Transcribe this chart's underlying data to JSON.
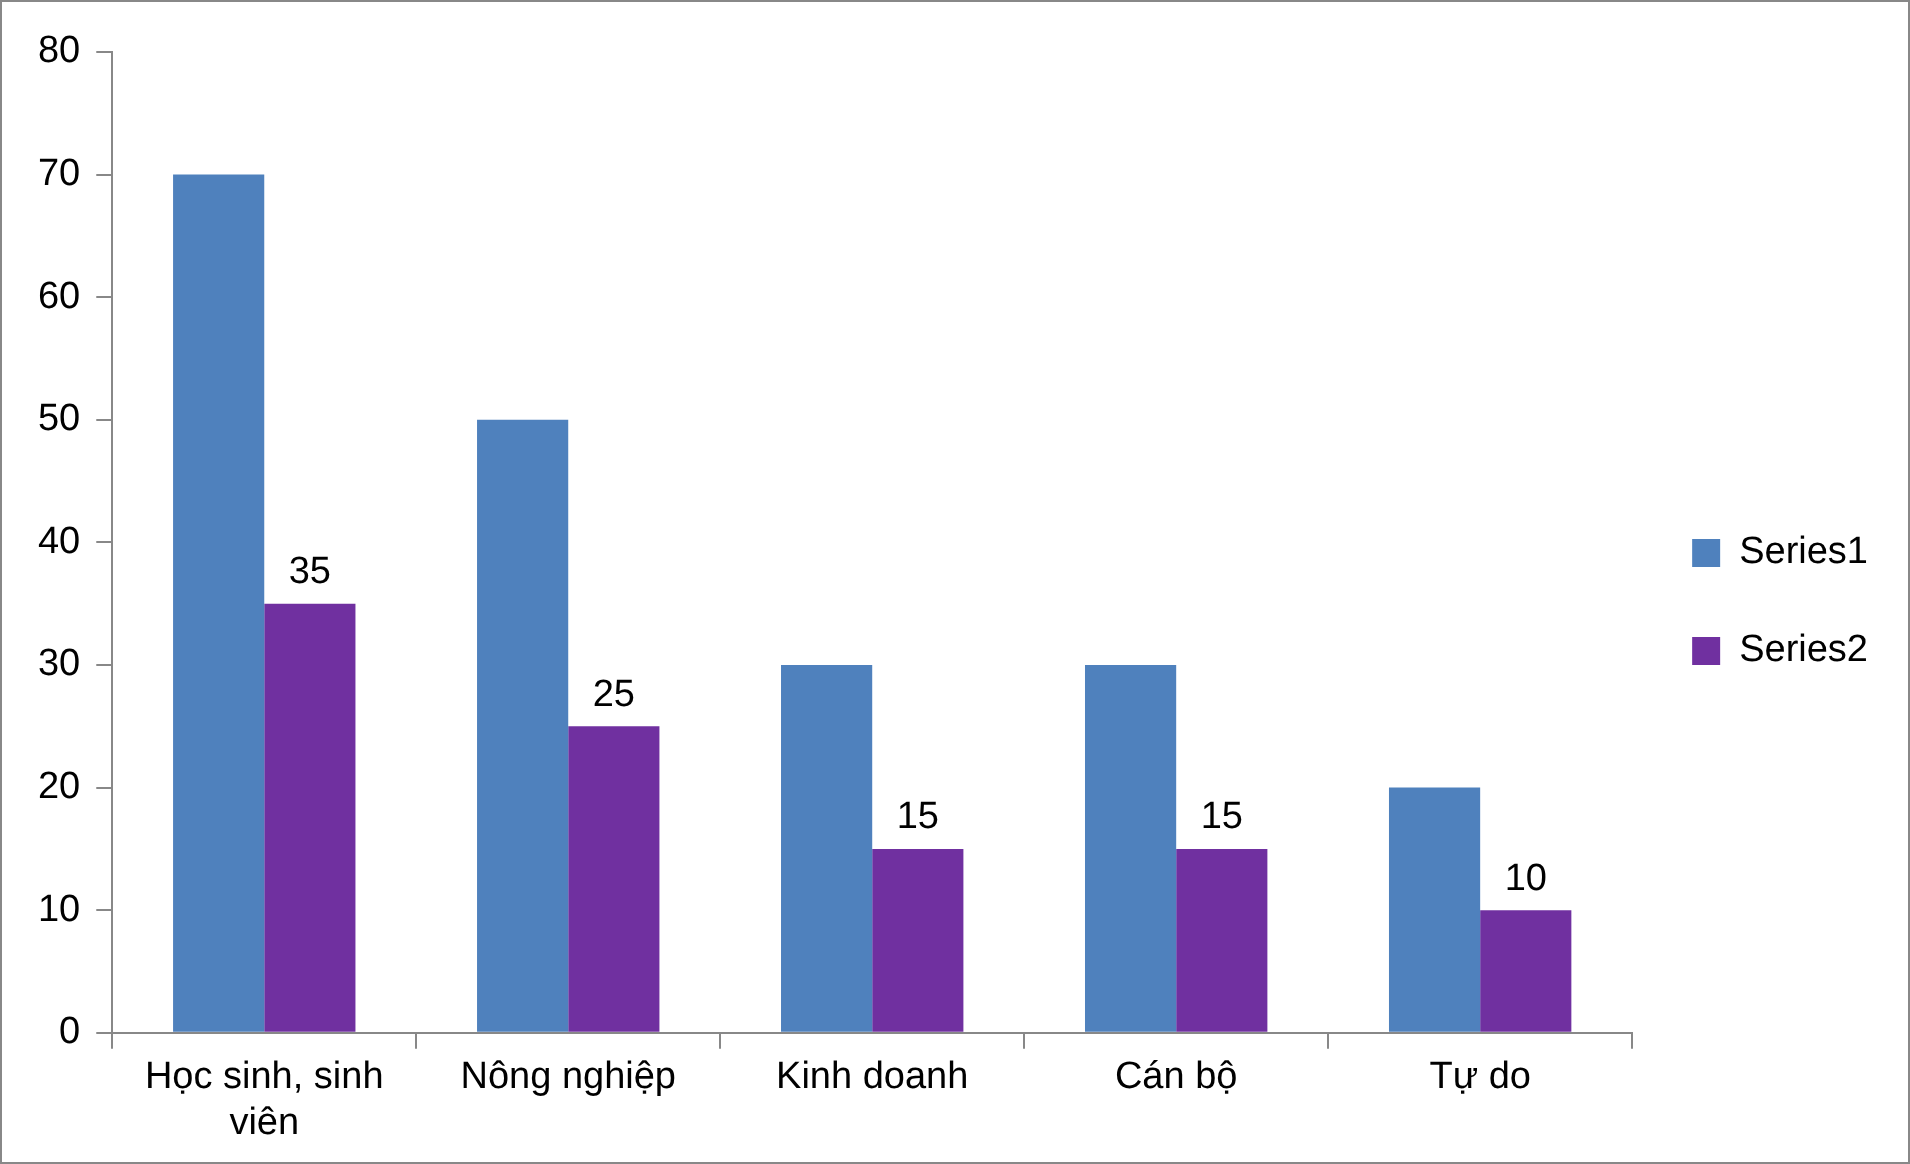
{
  "chart_data": {
    "type": "bar",
    "categories": [
      "Học sinh, sinh viên",
      "Nông nghiệp",
      "Kinh doanh",
      "Cán bộ",
      "Tự do"
    ],
    "series": [
      {
        "name": "Series1",
        "color": "#4f81bd",
        "values": [
          70,
          50,
          30,
          30,
          20
        ]
      },
      {
        "name": "Series2",
        "color": "#7030a0",
        "values": [
          35,
          25,
          15,
          15,
          10
        ],
        "value_labels": [
          "35",
          "25",
          "15",
          "15",
          "10"
        ]
      }
    ],
    "ylim": [
      0,
      80
    ],
    "yticks": [
      0,
      10,
      20,
      30,
      40,
      50,
      60,
      70,
      80
    ],
    "grid": false,
    "legend": "right"
  }
}
